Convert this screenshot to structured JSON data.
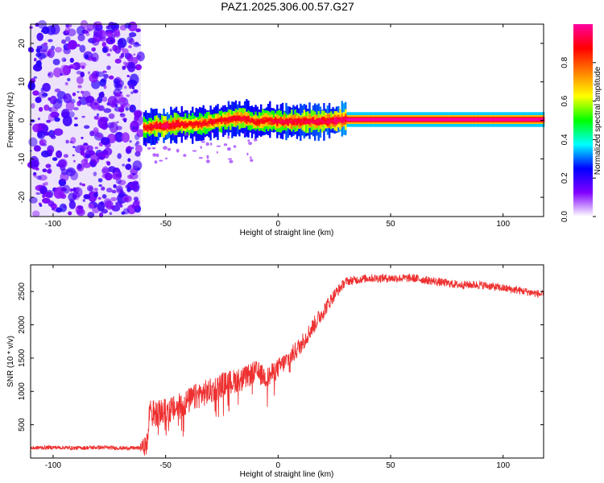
{
  "chart_data": [
    {
      "type": "heatmap",
      "title": "PAZ1.2025.306.00.57.G27",
      "xlabel": "Height of straight line (km)",
      "ylabel": "Frequency (Hz)",
      "xlim": [
        -110,
        118
      ],
      "ylim": [
        -25,
        25
      ],
      "xticks": [
        -100,
        -50,
        0,
        50,
        100
      ],
      "yticks": [
        -20,
        -10,
        0,
        10,
        20
      ],
      "colorbar": {
        "label": "Normalized spectral amplitude",
        "range": [
          0,
          1
        ],
        "ticks": [
          0.0,
          0.2,
          0.4,
          0.6,
          0.8
        ],
        "tick_labels": [
          "0.0",
          "0.2",
          "0.4",
          "0.6",
          "0.8"
        ],
        "colors": [
          "#ffffff",
          "#8000ff",
          "#0000ff",
          "#00ffff",
          "#00ff00",
          "#ffff00",
          "#ff8000",
          "#ff0000",
          "#ff00a0"
        ]
      },
      "noise_region_x": [
        -110,
        -61
      ],
      "signal_ridge": [
        {
          "x": -60,
          "f": -2.0,
          "a": 0.55
        },
        {
          "x": -55,
          "f": -1.5,
          "a": 0.75
        },
        {
          "x": -50,
          "f": -1.5,
          "a": 0.85
        },
        {
          "x": -45,
          "f": -1.0,
          "a": 0.7
        },
        {
          "x": -40,
          "f": -1.0,
          "a": 0.6
        },
        {
          "x": -35,
          "f": -1.0,
          "a": 0.6
        },
        {
          "x": -30,
          "f": -0.5,
          "a": 0.65
        },
        {
          "x": -25,
          "f": 0.0,
          "a": 0.6
        },
        {
          "x": -20,
          "f": 0.5,
          "a": 0.75
        },
        {
          "x": -15,
          "f": 0.5,
          "a": 0.7
        },
        {
          "x": -10,
          "f": -0.5,
          "a": 0.6
        },
        {
          "x": -5,
          "f": 0.0,
          "a": 0.65
        },
        {
          "x": 0,
          "f": -0.3,
          "a": 0.75
        },
        {
          "x": 10,
          "f": -0.3,
          "a": 0.8
        },
        {
          "x": 20,
          "f": -0.2,
          "a": 0.8
        },
        {
          "x": 30,
          "f": 0.2,
          "a": 1.0
        },
        {
          "x": 118,
          "f": 0.2,
          "a": 1.0
        }
      ]
    },
    {
      "type": "line",
      "xlabel": "Height of straight line (km)",
      "ylabel": "SNR (10 * v/v)",
      "xlim": [
        -110,
        118
      ],
      "ylim": [
        0,
        2900
      ],
      "xticks": [
        -100,
        -50,
        0,
        50,
        100
      ],
      "yticks": [
        500,
        1000,
        1500,
        2000,
        2500
      ],
      "series_color": "#ee3030",
      "series": [
        {
          "name": "SNR",
          "x": [
            -110,
            -100,
            -90,
            -80,
            -70,
            -62,
            -58,
            -57,
            -55,
            -50,
            -45,
            -40,
            -35,
            -30,
            -25,
            -20,
            -15,
            -10,
            -5,
            0,
            5,
            10,
            15,
            20,
            25,
            30,
            40,
            50,
            60,
            70,
            80,
            90,
            100,
            110,
            118
          ],
          "y": [
            150,
            160,
            150,
            160,
            150,
            150,
            200,
            800,
            650,
            700,
            750,
            850,
            950,
            1000,
            1100,
            1150,
            1200,
            1300,
            1200,
            1350,
            1500,
            1700,
            1950,
            2200,
            2450,
            2650,
            2700,
            2700,
            2700,
            2650,
            2600,
            2600,
            2550,
            2500,
            2450
          ]
        }
      ],
      "noise_amplitude": [
        {
          "x": -110,
          "amp": 60
        },
        {
          "x": -62,
          "amp": 60
        },
        {
          "x": -58,
          "amp": 400
        },
        {
          "x": -30,
          "amp": 400
        },
        {
          "x": 0,
          "amp": 300
        },
        {
          "x": 20,
          "amp": 250
        },
        {
          "x": 30,
          "amp": 130
        },
        {
          "x": 118,
          "amp": 120
        }
      ]
    }
  ]
}
